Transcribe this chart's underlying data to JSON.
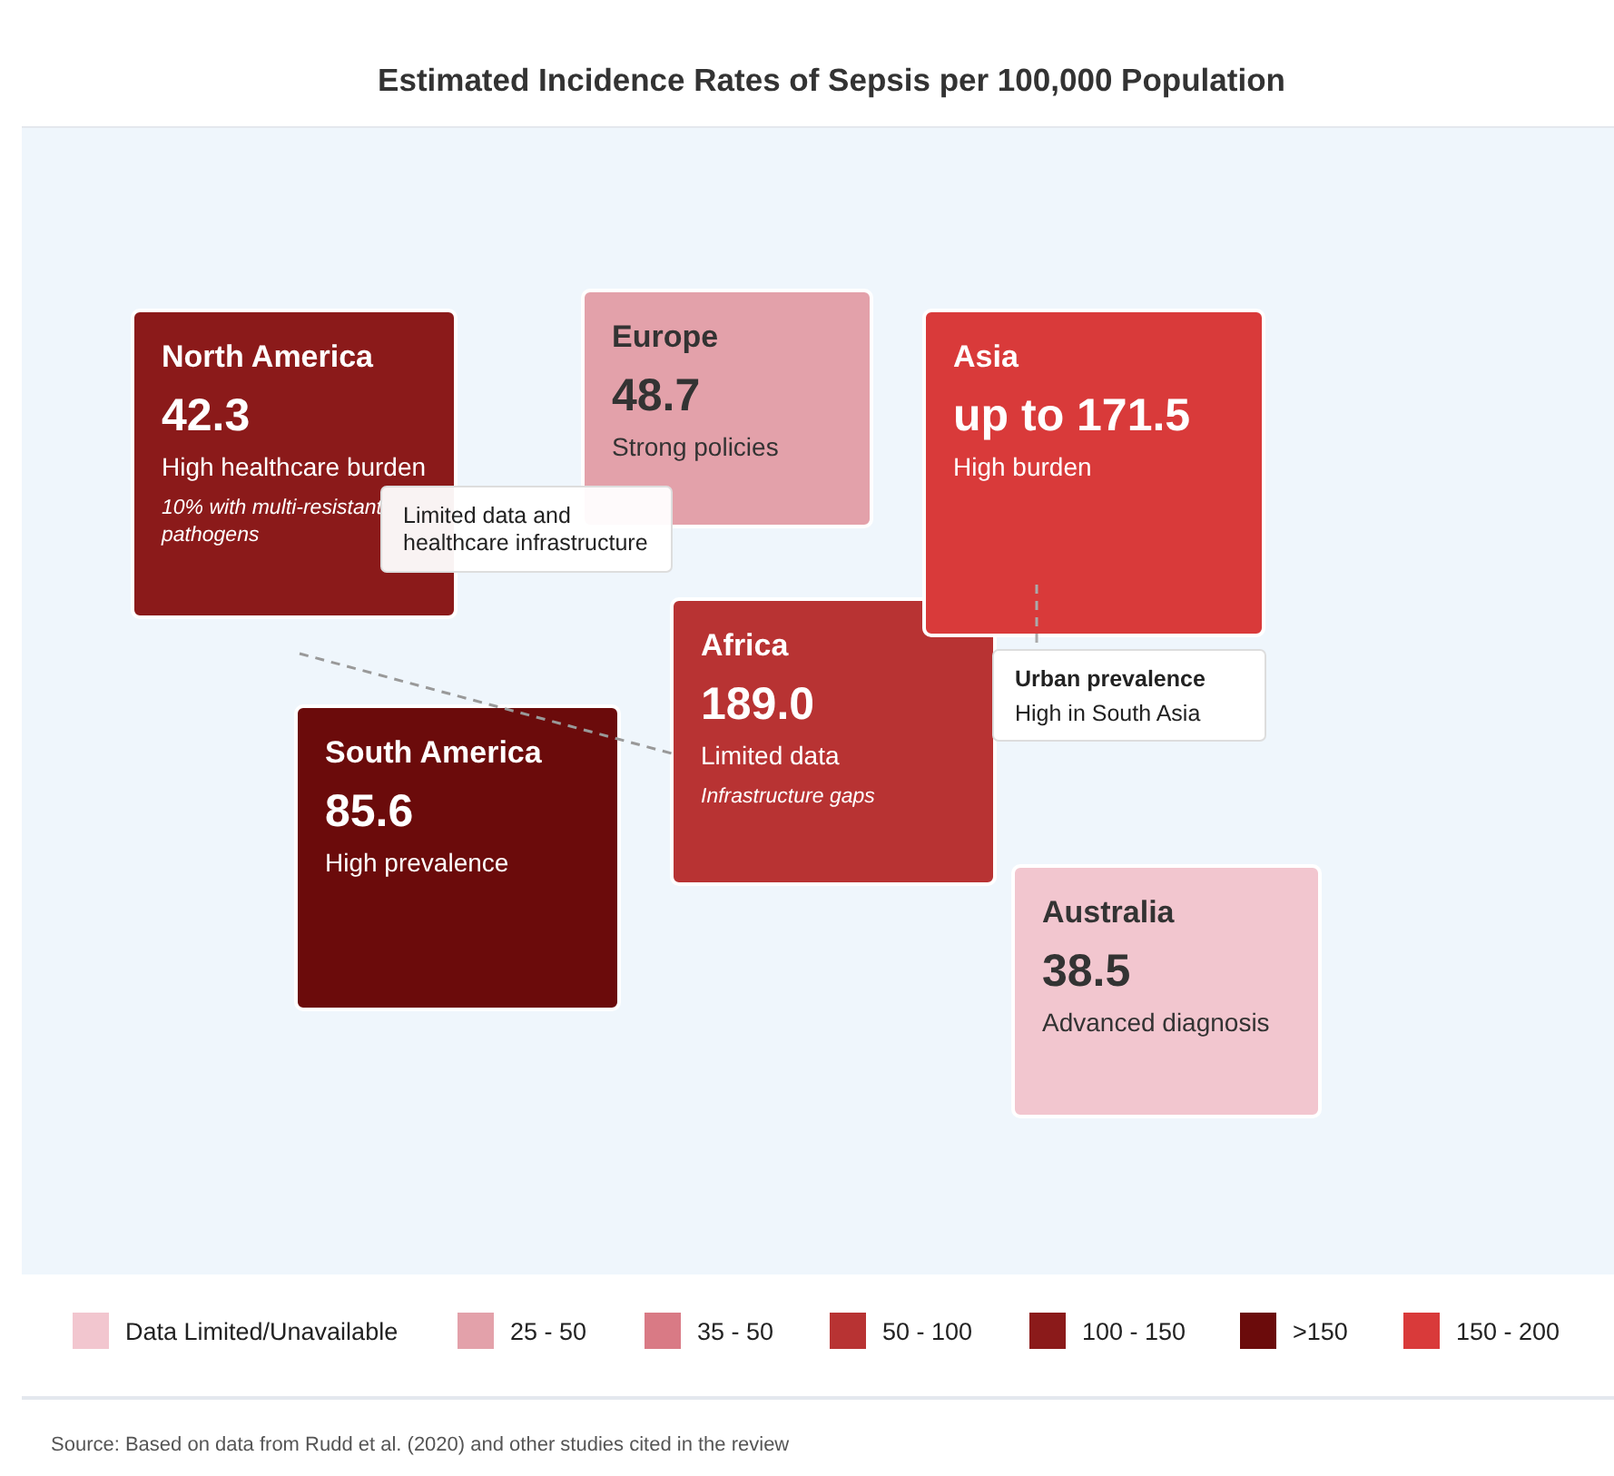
{
  "chart_data": {
    "type": "other",
    "title": "Estimated Incidence Rates of Sepsis per 100,000 Population",
    "categories": [
      "North America",
      "Europe",
      "Asia",
      "Africa",
      "South America",
      "Australia"
    ],
    "series": [
      {
        "name": "Data Limited/Unavailable",
        "color": "#f2c6cf",
        "values": [
          null,
          null,
          null,
          null,
          null,
          38.5
        ]
      },
      {
        "name": "25 - 50",
        "color": "#e3a1aa",
        "values": [
          null,
          48.7,
          null,
          null,
          null,
          null
        ]
      },
      {
        "name": "35 - 50",
        "color": "#d97a85",
        "values": [
          null,
          null,
          null,
          null,
          null,
          null
        ]
      },
      {
        "name": "50 - 100",
        "color": "#b83333",
        "values": [
          null,
          null,
          null,
          189.0,
          null,
          null
        ],
        "value_labels": [
          null,
          null,
          null,
          "189.0",
          null,
          null
        ]
      },
      {
        "name": "100 - 150",
        "color": "#8b1a1a",
        "values": [
          42.3,
          null,
          null,
          null,
          null,
          null
        ]
      },
      {
        "name": ">150",
        "color": "#6b0b0b",
        "values": [
          null,
          null,
          null,
          null,
          85.6,
          null
        ]
      },
      {
        "name": "150 - 200",
        "color": "#d93a3a",
        "values": [
          null,
          null,
          171.5,
          null,
          null,
          null
        ],
        "value_labels": [
          null,
          null,
          "up to 171.5",
          null,
          null,
          null
        ]
      }
    ],
    "legend": "bottom",
    "data_labels": true,
    "annotations": [
      {
        "text": "High healthcare burden",
        "x": "North America"
      },
      {
        "text": "10% with multi-resistant pathogens",
        "x": "North America"
      },
      {
        "text": "Strong policies",
        "x": "Europe"
      },
      {
        "text": "High burden",
        "x": "Asia"
      },
      {
        "text": "Limited data",
        "x": "Africa"
      },
      {
        "text": "Infrastructure gaps",
        "x": "Africa"
      },
      {
        "text": "High prevalence",
        "x": "South America"
      },
      {
        "text": "Advanced diagnosis",
        "x": "Australia"
      },
      "Limited data and healthcare infrastructure",
      "Urban prevalence",
      "High in South Asia",
      "Source: Based on data from Rudd et al. (2020) and other studies cited in the review"
    ]
  }
}
